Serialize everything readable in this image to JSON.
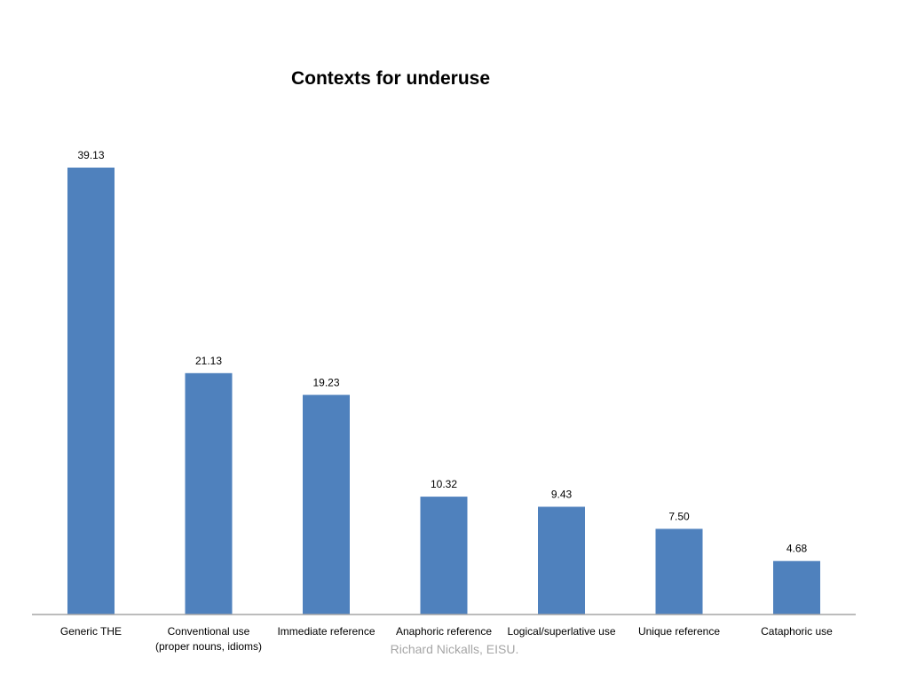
{
  "chart_data": {
    "type": "bar",
    "title": "Contexts for underuse",
    "xlabel": "",
    "ylabel": "",
    "categories": [
      [
        "Generic THE"
      ],
      [
        "Conventional use",
        "(proper nouns, idioms)"
      ],
      [
        "Immediate reference"
      ],
      [
        "Anaphoric reference"
      ],
      [
        "Logical/superlative use"
      ],
      [
        "Unique reference"
      ],
      [
        "Cataphoric use"
      ]
    ],
    "values": [
      39.13,
      21.13,
      19.23,
      10.32,
      9.43,
      7.5,
      4.68
    ],
    "value_labels": [
      "39.13",
      "21.13",
      "19.23",
      "10.32",
      "9.43",
      "7.50",
      "4.68"
    ],
    "ylim": [
      0,
      40
    ],
    "grid": false,
    "legend": "none",
    "bar_color": "#4f81bd",
    "axis_color": "#a6a6a6"
  },
  "footer": {
    "credit": "Richard Nickalls, EISU."
  }
}
